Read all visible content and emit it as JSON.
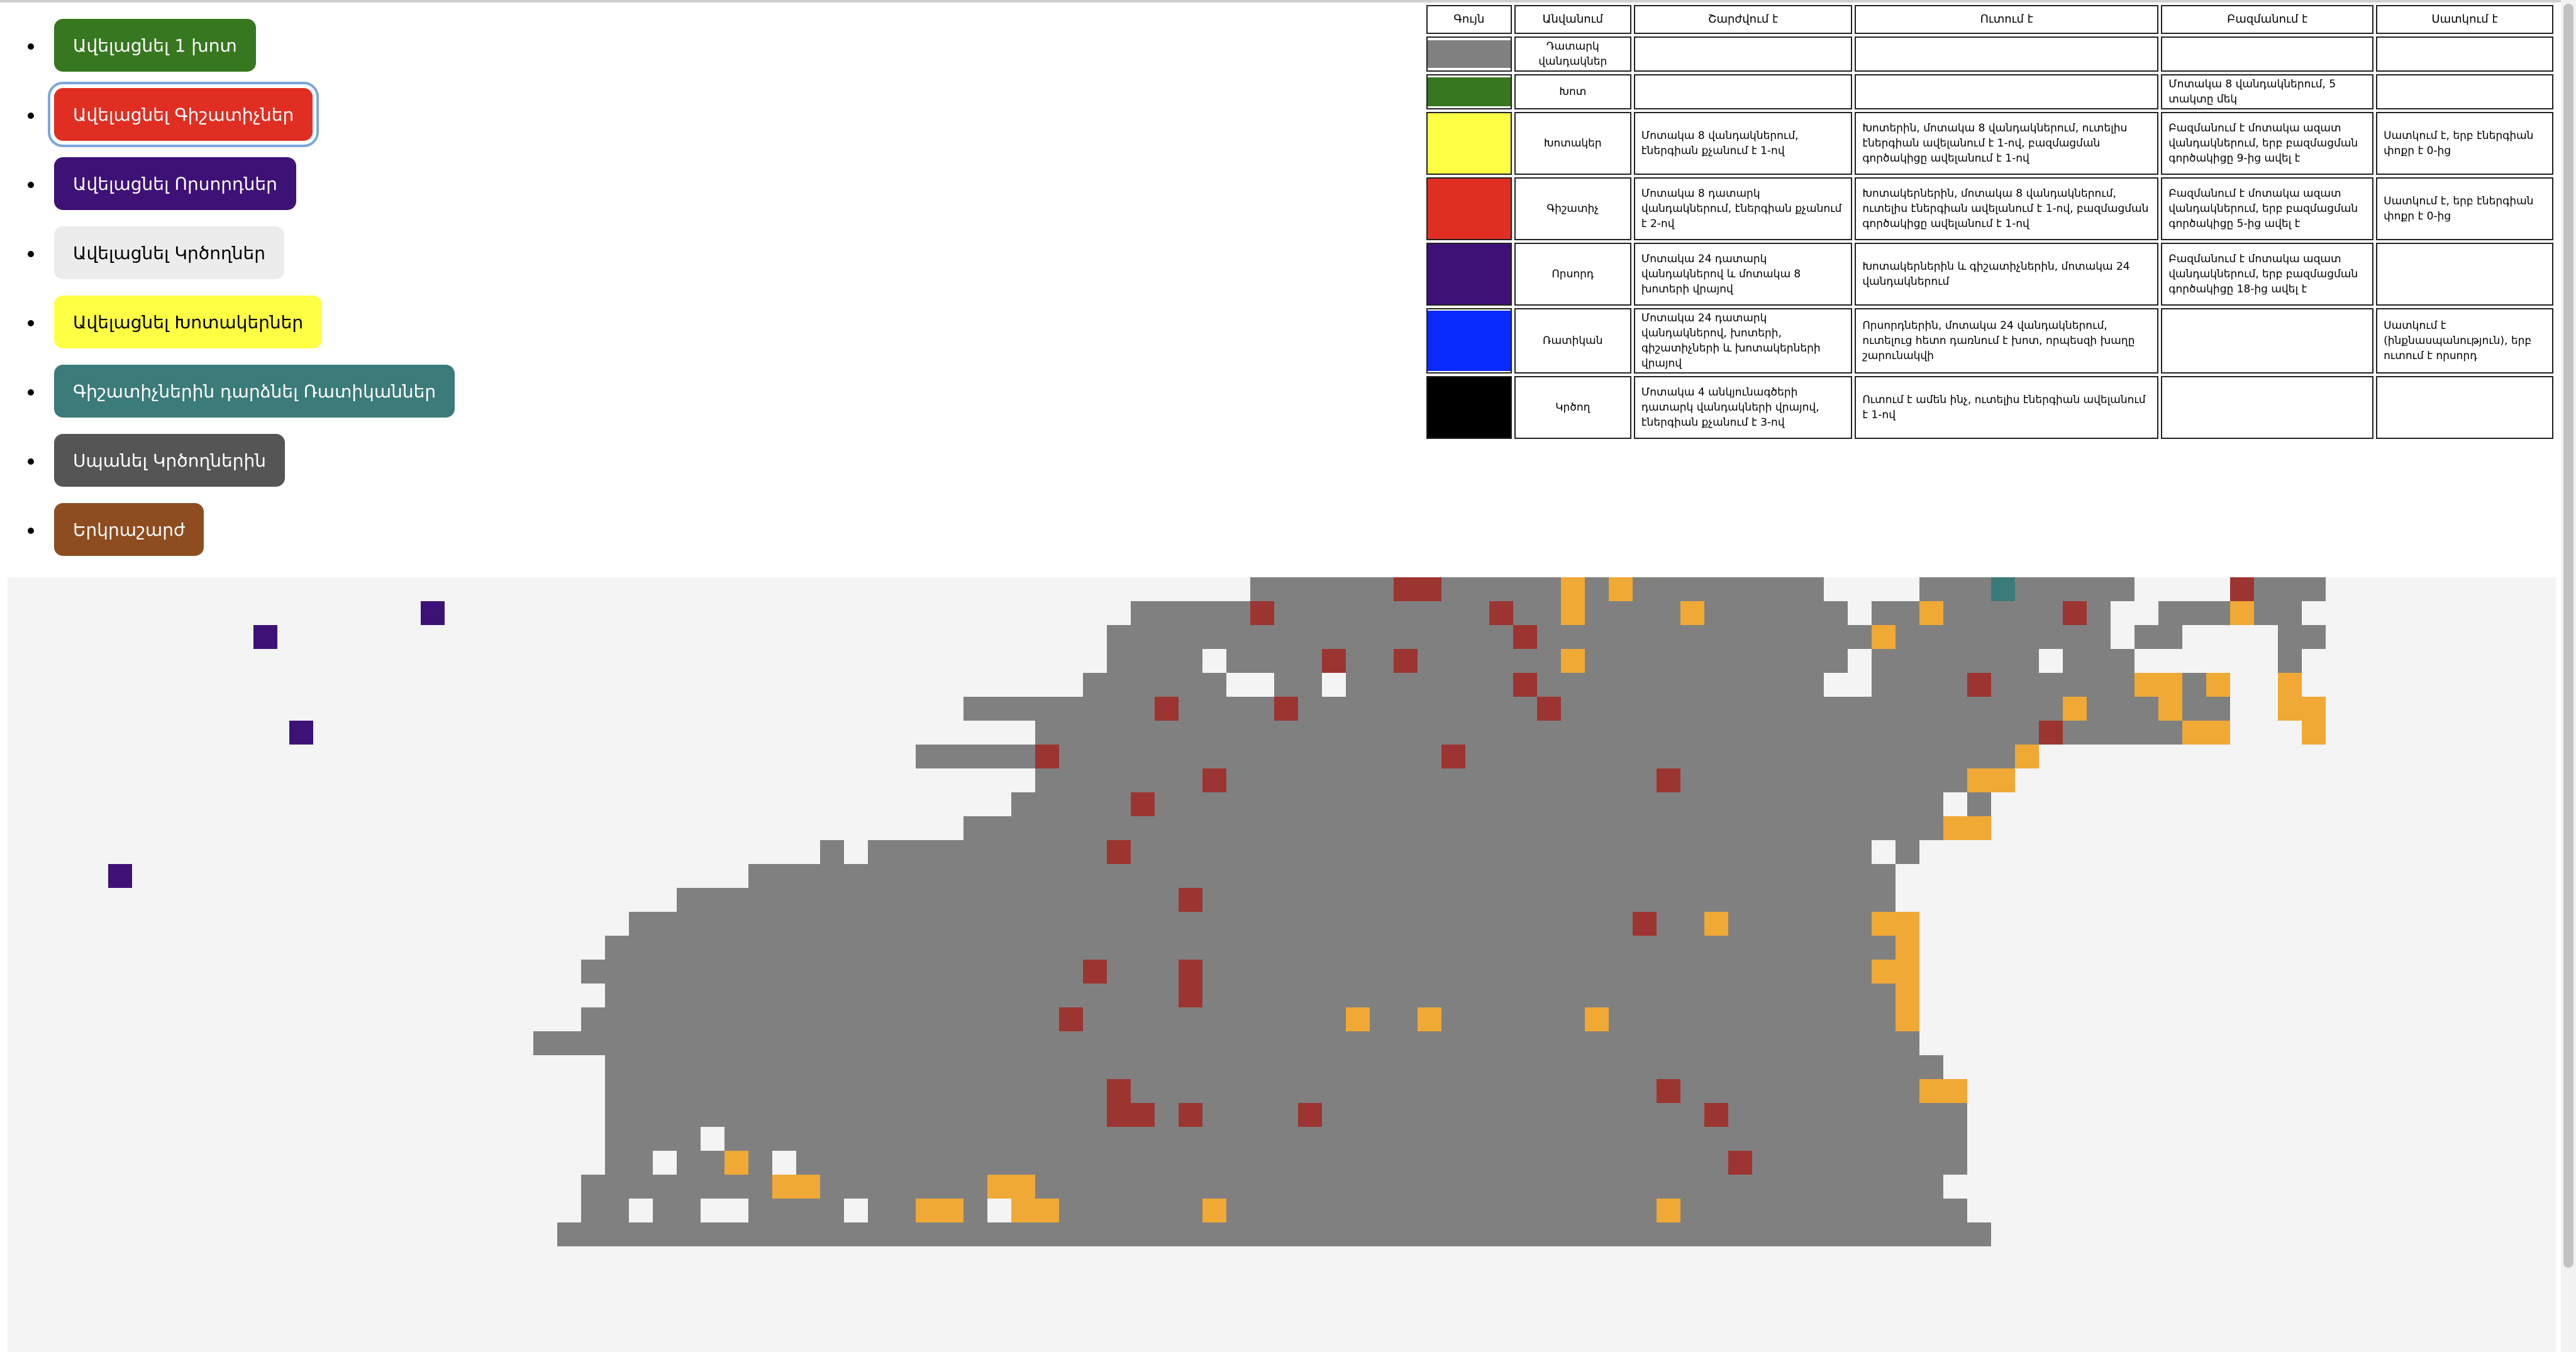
{
  "buttons": [
    {
      "label": "Ավելացնել 1 խոտ",
      "bg": "#37771f",
      "fg": "#ffffff",
      "focused": false
    },
    {
      "label": "Ավելացնել Գիշատիչներ",
      "bg": "#e12e22",
      "fg": "#ffffff",
      "focused": true
    },
    {
      "label": "Ավելացնել Որսորդներ",
      "bg": "#3e1177",
      "fg": "#ffffff",
      "focused": false
    },
    {
      "label": "Ավելացնել Կրծողներ",
      "bg": "#ececec",
      "fg": "#000000",
      "focused": false
    },
    {
      "label": "Ավելացնել Խոտակերներ",
      "bg": "#ffff44",
      "fg": "#000000",
      "focused": false
    },
    {
      "label": "Գիշատիչներին դարձնել Ռատիկաններ",
      "bg": "#3b7b79",
      "fg": "#ffffff",
      "focused": false
    },
    {
      "label": "Սպանել Կրծողներին",
      "bg": "#555555",
      "fg": "#ffffff",
      "focused": false
    },
    {
      "label": "Երկրաշարժ",
      "bg": "#8e4d20",
      "fg": "#ffffff",
      "focused": false
    }
  ],
  "legend": {
    "headers": [
      "Գույն",
      "Անվանում",
      "Շարժվում է",
      "Ուտում է",
      "Բազմանում է",
      "Սատկում է"
    ],
    "rows": [
      {
        "color": "#808080",
        "name": "Դատարկ վանդակներ",
        "moves": "",
        "eats": "",
        "breeds": "",
        "dies": ""
      },
      {
        "color": "#37771f",
        "name": "Խոտ",
        "moves": "",
        "eats": "",
        "breeds": "Մոտակա 8 վանդակներում, 5 տակտը մեկ",
        "dies": ""
      },
      {
        "color": "#ffff44",
        "name": "Խոտակեր",
        "moves": "Մոտակա 8 վանդակներում, էներգիան քչանում է 1-ով",
        "eats": "Խոտերին, մոտակա 8 վանդակներում, ուտելիս էներգիան ավելանում է 1-ով, բազմացման գործակիցը ավելանում է 1-ով",
        "breeds": "Բազմանում է մոտակա ազատ վանդակներում, երբ բազմացման գործակիցը 9-ից ավել է",
        "dies": "Սատկում է, երբ էներգիան փոքր է 0-ից"
      },
      {
        "color": "#e12e22",
        "name": "Գիշատիչ",
        "moves": "Մոտակա 8 դատարկ վանդակներում, էներգիան քչանում է 2-ով",
        "eats": "Խոտակերներին, մոտակա 8 վանդակներում, ուտելիս էներգիան ավելանում է 1-ով, բազմացման գործակիցը ավելանում է 1-ով",
        "breeds": "Բազմանում է մոտակա ազատ վանդակներում, երբ բազմացման գործակիցը 5-ից ավել է",
        "dies": "Սատկում է, երբ էներգիան փոքր է 0-ից"
      },
      {
        "color": "#3e1177",
        "name": "Որսորդ",
        "moves": "Մոտակա 24 դատարկ վանդակներով և մոտակա 8 խոտերի վրայով",
        "eats": "Խոտակերներին և գիշատիչներին, մոտակա 24 վանդակներում",
        "breeds": "Բազմանում է մոտակա ազատ վանդակներում, երբ բազմացման գործակիցը 18-ից ավել է",
        "dies": ""
      },
      {
        "color": "#0a2bff",
        "name": "Ռատիկան",
        "moves": "Մոտակա 24 դատարկ վանդակներով, խոտերի, գիշատիչների և խոտակերների վրայով",
        "eats": "Որսորդներին, մոտակա 24 վանդակներում, ուտելուց հետո դառնում է խոտ, որպեսզի խաղը շարունակվի",
        "breeds": "",
        "dies": "Սատկում է (ինքնասպանություն), երբ ուտում է որսորդ"
      },
      {
        "color": "#000000",
        "name": "Կրծող",
        "moves": "Մոտակա 4 անկյունագծերի դատարկ վանդակների վրայով, էներգիան քչանում է 3-ով",
        "eats": "Ուտում է ամեն ինչ, ուտելիս էներգիան ավելանում է 1-ով",
        "breeds": "",
        "dies": ""
      }
    ]
  },
  "map": {
    "colors": {
      "G": "#808080",
      "O": "#f0a935",
      "R": "#9c3531",
      "P": "#3e1177",
      "T": "#3b7b79"
    },
    "rows": [
      "....................................................GGGGGGRRGGGGGOGOGGGGGGGG....GGGTGGGGG....RGGG",
      "...............................................GGGGGRGGGGGGGGGRGGOGGGGOGGGGGG.GGOGGGGGRG..GGGOGG",
      "..............................................GGGGGGGGGGGGGGGGGRGGGGGGGGGGGGGGOGGGGGGGGG.GG....GG",
      "..............................................GGGG.GGGGRGGRGGGGGGOGGGGGGGGGGG.GGGGGGG.GGG......G",
      ".............................................GGGGGG..GG.GGGGGGGRGGGGGGGGGGGG..GGGGRGGGGGGOOGO..O",
      "........................................GGGGGGGGRGGGGRGGGGGGGGGGRGGGGGGGGGGGGGGGGGGGGGOGGGOGG..OO",
      "...........................................GGGGGGGGGGGGGGGGGGGGGGGGGGGGGGGGGGGGGGGGGGRGGGGGOO...O",
      "......................................GGGGGRGGGGGGGGGGGGGGGGRGGGGGGGGGGGGGGGGGGGGGGGO...........",
      "...........................................GGGGGGGRGGGGGGGGGGGGGGGGGGRGGGGGGGGGGGGOO............",
      "..........................................GGGGGRGGGGGGGGGGGGGGGGGGGGGGGGGGGGGGGGG.G.............",
      "........................................GGGGGGGGGGGGGGGGGGGGGGGGGGGGGGGGGGGGGGGGGOO..............",
      "..................................G.GGGGGGGGGGRGGGGGGGGGGGGGGGGGGGGGGGGGGGGGGG.G.................",
      "...............................GGGGGGGGGGGGGGGGGGGGGGGGGGGGGGGGGGGGGGGGGGGGGGGG.................",
      "............................GGGGGGGGGGGGGGGGGGGGGRGGGGGGGGGGGGGGGGGGGGGGGGGGGGG..................",
      "..........................GGGGGGGGGGGGGGGGGGGGGGGGGGGGGGGGGGGGGGGGGGRGGOGGGGGGOO.................",
      ".........................GGGGGGGGGGGGGGGGGGGGGGGGGGGGGGGGGGGGGGGGGGGGGGGGGGGGGGO.................",
      "........................GGGGGGGGGGGGGGGGGGGGGRGGGRGGGGGGGGGGGGGGGGGGGGGGGGGGGGOO.................",
      ".........................GGGGGGGGGGGGGGGGGGGGGGGGRGGGGGGGGGGGGGGGGGGGGGGGGGGGGGO.................",
      "........................GGGGGGGGGGGGGGGGGGGGRGGGGGGGGGGGOGGOGGGGGGOGGGGGGGGGGGGO.................",
      "......................GGGGGGGGGGGGGGGGGGGGGGGGGGGGGGGGGGGGGGGGGGGGGGGGGGGGGGGGGG................",
      ".........................GGGGGGGGGGGGGGGGGGGGGGGGGGGGGGGGGGGGGGGGGGGGGGGGGGGGGGGG................",
      ".........................GGGGGGGGGGGGGGGGGGGGGRGGGGGGGGGGGGGGGGGGGGGGRGGGGGGGGGGOO...............",
      ".........................GGGGGGGGGGGGGGGGGGGGGRRGRGGGGRGGGGGGGGGGGGGGGGRGGGGGGGGGG...............",
      ".........................GGGG.GGGGGGGGGGGGGGGGGGGGGGGGGGGGGGGGGGGGGGGGGGGGGGGGGGGG...............",
      ".........................GG.GGOG.GGGGGGGGGGGGGGGGGGGGGGGGGGGGGGGGGGGGGGGRGGGGGGGGG...............",
      "........................GGGGGGGGOOGGGGGGGOOGGGGGGGGGGGGGGGGGGGGGGGGGGGGGGGGGGGGGG..............",
      "........................GG.GG..GGGG.GGOOG.OOGGGGGGOGGGGGGGGGGGGGGGGGGOGGGGGGGGGGGG..............",
      ".......................GGGGGGGGGGGGGGGGGGGGGGGGGGGGGGGGGGGGGGGGGGGGGGGGGGGGGGGGGGGG............."
    ]
  },
  "scrollbar": {
    "position": 0.0
  }
}
